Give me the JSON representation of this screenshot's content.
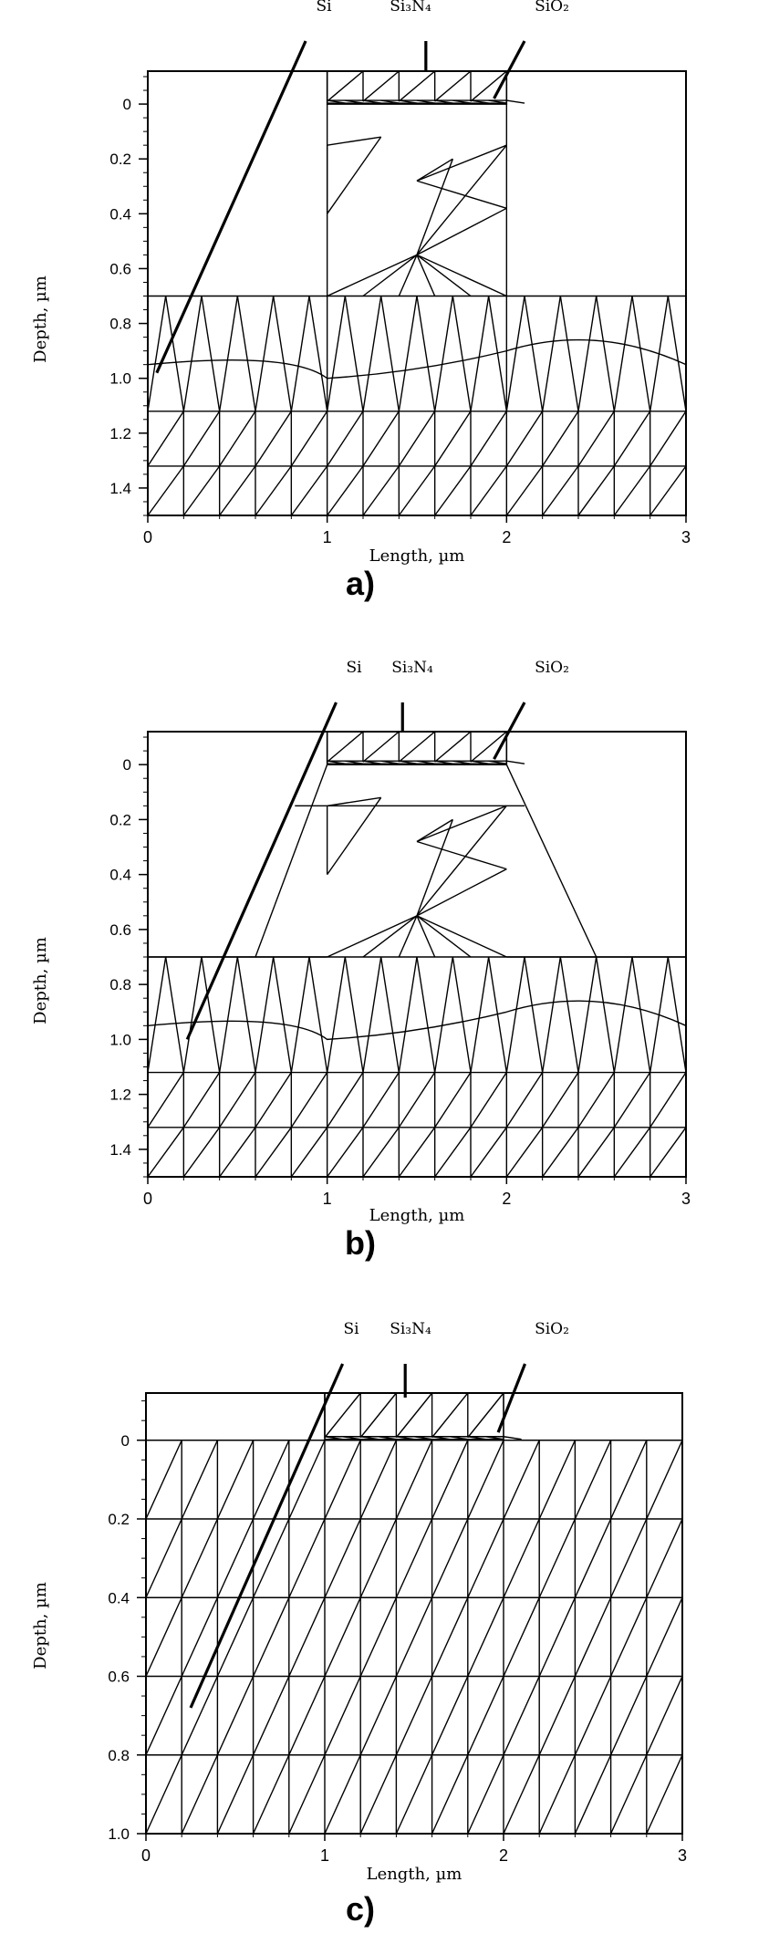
{
  "panels": [
    {
      "id": "a",
      "caption": "a)",
      "material_labels": [
        "Si",
        "Si₃N₄",
        "SiO₂"
      ],
      "x_axis": {
        "label": "Length, µm",
        "ticks": [
          "0",
          "1",
          "2",
          "3"
        ],
        "range": [
          0,
          3
        ]
      },
      "y_axis": {
        "label": "Depth, µm",
        "ticks": [
          "0",
          "0.2",
          "0.4",
          "0.6",
          "0.8",
          "1.0",
          "1.2",
          "1.4"
        ],
        "range": [
          -0.12,
          1.5
        ]
      },
      "mask_region": {
        "x_from": 1.0,
        "x_to": 2.0
      },
      "oxide_bottom_depth": 0.7,
      "oxide_shape": "vertical"
    },
    {
      "id": "b",
      "caption": "b)",
      "material_labels": [
        "Si",
        "Si₃N₄",
        "SiO₂"
      ],
      "x_axis": {
        "label": "Length, µm",
        "ticks": [
          "0",
          "1",
          "2",
          "3"
        ],
        "range": [
          0,
          3
        ]
      },
      "y_axis": {
        "label": "Depth, µm",
        "ticks": [
          "0",
          "0.2",
          "0.4",
          "0.6",
          "0.8",
          "1.0",
          "1.2",
          "1.4"
        ],
        "range": [
          -0.12,
          1.5
        ]
      },
      "mask_region": {
        "x_from": 1.0,
        "x_to": 2.0
      },
      "oxide_bottom_depth": 0.7,
      "oxide_shape": "bird's beak"
    },
    {
      "id": "c",
      "caption": "c)",
      "material_labels": [
        "Si",
        "Si₃N₄",
        "SiO₂"
      ],
      "x_axis": {
        "label": "Length, µm",
        "ticks": [
          "0",
          "1",
          "2",
          "3"
        ],
        "range": [
          0,
          3
        ]
      },
      "y_axis": {
        "label": "Depth, µm",
        "ticks": [
          "0",
          "0.2",
          "0.4",
          "0.6",
          "0.8",
          "1.0"
        ],
        "range": [
          -0.12,
          1.0
        ]
      },
      "mask_region": {
        "x_from": 1.0,
        "x_to": 2.0
      },
      "oxide_bottom_depth": 0.0,
      "oxide_shape": "none"
    }
  ]
}
